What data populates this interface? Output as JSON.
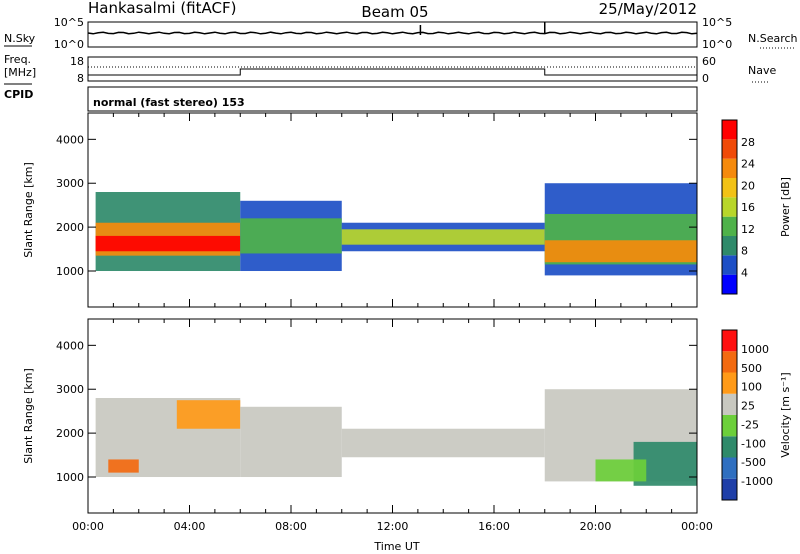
{
  "header": {
    "site": "Hankasalmi (fitACF)",
    "beam": "Beam 05",
    "date": "25/May/2012"
  },
  "top_panels": {
    "nsky_label": "N.Sky",
    "nsky_ticks": [
      "10^5",
      "10^0"
    ],
    "nsearch_label": "N.Search",
    "nsearch_ticks": [
      "10^5",
      "10^0"
    ],
    "freq_label": "Freq.",
    "freq_unit": "[MHz]",
    "freq_ticks": [
      "18",
      "8"
    ],
    "nave_label": "Nave",
    "nave_ticks": [
      "60",
      "0"
    ],
    "cpid_label": "CPID",
    "cpid_text": "normal (fast stereo) 153"
  },
  "chart_data": [
    {
      "type": "heatmap",
      "name": "power",
      "ylabel": "Slant Range [km]",
      "xlabel": "Time UT",
      "x_ticks": [
        "00:00",
        "04:00",
        "08:00",
        "12:00",
        "16:00",
        "20:00",
        "00:00"
      ],
      "x_hours": [
        0,
        4,
        8,
        12,
        16,
        20,
        24
      ],
      "y_ticks": [
        1000,
        2000,
        3000,
        4000
      ],
      "ylim": [
        180,
        4600
      ],
      "colorbar": {
        "label": "Power [dB]",
        "ticks": [
          "28",
          "24",
          "20",
          "16",
          "12",
          "8",
          "4"
        ],
        "colors": [
          "#0000ff",
          "#1d4fc6",
          "#2f8a6a",
          "#4fb24a",
          "#b8d62a",
          "#f2c216",
          "#f58a0c",
          "#f04a08",
          "#ff0000"
        ]
      },
      "bands": [
        {
          "x0": 0.3,
          "x1": 6.0,
          "y0": 1000,
          "y1": 2800,
          "color": "#2f8a6a"
        },
        {
          "x0": 0.3,
          "x1": 6.0,
          "y0": 1350,
          "y1": 2100,
          "color": "#f58a0c"
        },
        {
          "x0": 0.3,
          "x1": 6.0,
          "y0": 1450,
          "y1": 1800,
          "color": "#ff0000"
        },
        {
          "x0": 6.0,
          "x1": 10.0,
          "y0": 1000,
          "y1": 2600,
          "color": "#1d4fc6"
        },
        {
          "x0": 6.0,
          "x1": 10.0,
          "y0": 1400,
          "y1": 2200,
          "color": "#4fb24a"
        },
        {
          "x0": 10.0,
          "x1": 18.0,
          "y0": 1450,
          "y1": 2100,
          "color": "#1d4fc6"
        },
        {
          "x0": 10.0,
          "x1": 18.0,
          "y0": 1600,
          "y1": 1950,
          "color": "#b8d62a"
        },
        {
          "x0": 18.0,
          "x1": 24.0,
          "y0": 900,
          "y1": 3000,
          "color": "#1d4fc6"
        },
        {
          "x0": 18.0,
          "x1": 24.0,
          "y0": 1150,
          "y1": 2300,
          "color": "#4fb24a"
        },
        {
          "x0": 18.0,
          "x1": 24.0,
          "y0": 1200,
          "y1": 1700,
          "color": "#f58a0c"
        }
      ]
    },
    {
      "type": "heatmap",
      "name": "velocity",
      "ylabel": "Slant Range [km]",
      "xlabel": "Time UT",
      "x_ticks": [
        "00:00",
        "04:00",
        "08:00",
        "12:00",
        "16:00",
        "20:00",
        "00:00"
      ],
      "x_hours": [
        0,
        4,
        8,
        12,
        16,
        20,
        24
      ],
      "y_ticks": [
        1000,
        2000,
        3000,
        4000
      ],
      "ylim": [
        180,
        4600
      ],
      "colorbar": {
        "label": "Velocity [m s⁻¹]",
        "ticks": [
          "1000",
          "500",
          "100",
          "25",
          "-25",
          "-100",
          "-500",
          "-1000"
        ],
        "colors": [
          "#1f3fa8",
          "#2f6fc0",
          "#2f8a6a",
          "#6ccf3a",
          "#c8c8c0",
          "#ff9a18",
          "#f36a10",
          "#ff1010"
        ]
      },
      "bands": [
        {
          "x0": 0.3,
          "x1": 6.0,
          "y0": 1000,
          "y1": 2800,
          "color": "#c8c8c0"
        },
        {
          "x0": 3.5,
          "x1": 6.0,
          "y0": 2100,
          "y1": 2750,
          "color": "#ff9a18"
        },
        {
          "x0": 0.8,
          "x1": 2.0,
          "y0": 1100,
          "y1": 1400,
          "color": "#f36a10"
        },
        {
          "x0": 6.0,
          "x1": 10.0,
          "y0": 1000,
          "y1": 2600,
          "color": "#c8c8c0"
        },
        {
          "x0": 10.0,
          "x1": 18.0,
          "y0": 1450,
          "y1": 2100,
          "color": "#c8c8c0"
        },
        {
          "x0": 18.0,
          "x1": 24.0,
          "y0": 900,
          "y1": 3000,
          "color": "#c8c8c0"
        },
        {
          "x0": 21.5,
          "x1": 24.0,
          "y0": 800,
          "y1": 1800,
          "color": "#2f8a6a"
        },
        {
          "x0": 20.0,
          "x1": 22.0,
          "y0": 900,
          "y1": 1400,
          "color": "#6ccf3a"
        }
      ]
    }
  ]
}
